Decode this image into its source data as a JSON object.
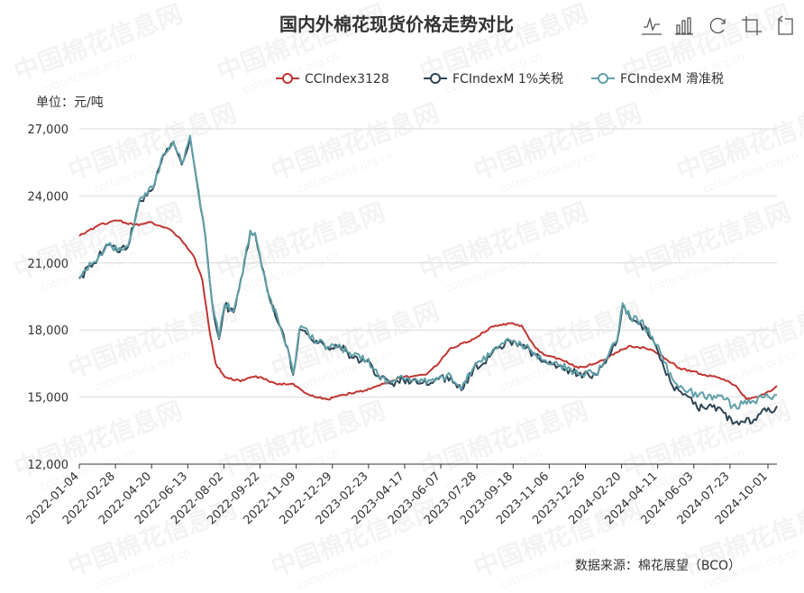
{
  "chart_data": {
    "type": "line",
    "title": "国内外棉花现货价格走势对比",
    "unit_label": "单位：元/吨",
    "source": "数据来源：棉花展望（BCO）",
    "x_tick_labels": [
      "2022-01-04",
      "2022-02-28",
      "2022-04-20",
      "2022-06-13",
      "2022-08-02",
      "2022-09-22",
      "2022-11-09",
      "2022-12-29",
      "2023-02-23",
      "2023-04-17",
      "2023-06-07",
      "2023-07-28",
      "2023-09-18",
      "2023-11-06",
      "2023-12-26",
      "2024-02-20",
      "2024-04-11",
      "2024-06-03",
      "2024-07-23",
      "2024-10-01"
    ],
    "ylim": [
      12000,
      27000
    ],
    "y_ticks": [
      12000,
      15000,
      18000,
      21000,
      24000,
      27000
    ],
    "y_tick_labels": [
      "12,000",
      "15,000",
      "18,000",
      "21,000",
      "24,000",
      "27,000"
    ],
    "grid": true,
    "legend_position": "top-right",
    "x_domain": [
      "2022-01-04",
      "2024-10-08"
    ],
    "series": [
      {
        "name": "CCIndex3128",
        "color": "#c23531",
        "points": [
          [
            "2022-01-04",
            22200
          ],
          [
            "2022-02-01",
            22700
          ],
          [
            "2022-02-28",
            22900
          ],
          [
            "2022-03-25",
            22700
          ],
          [
            "2022-04-20",
            22800
          ],
          [
            "2022-05-15",
            22500
          ],
          [
            "2022-06-01",
            22000
          ],
          [
            "2022-06-20",
            21200
          ],
          [
            "2022-07-01",
            20200
          ],
          [
            "2022-07-12",
            17800
          ],
          [
            "2022-07-20",
            16500
          ],
          [
            "2022-08-02",
            15900
          ],
          [
            "2022-08-25",
            15700
          ],
          [
            "2022-09-10",
            15900
          ],
          [
            "2022-09-22",
            15900
          ],
          [
            "2022-10-15",
            15600
          ],
          [
            "2022-11-09",
            15600
          ],
          [
            "2022-11-25",
            15200
          ],
          [
            "2022-12-10",
            15000
          ],
          [
            "2022-12-29",
            14900
          ],
          [
            "2023-01-20",
            15100
          ],
          [
            "2023-02-23",
            15300
          ],
          [
            "2023-03-20",
            15600
          ],
          [
            "2023-04-17",
            15900
          ],
          [
            "2023-05-20",
            16000
          ],
          [
            "2023-06-07",
            16500
          ],
          [
            "2023-06-25",
            17200
          ],
          [
            "2023-07-28",
            17600
          ],
          [
            "2023-08-20",
            18100
          ],
          [
            "2023-09-18",
            18300
          ],
          [
            "2023-10-05",
            18200
          ],
          [
            "2023-10-25",
            17200
          ],
          [
            "2023-11-06",
            16900
          ],
          [
            "2023-11-30",
            16700
          ],
          [
            "2023-12-26",
            16300
          ],
          [
            "2024-01-20",
            16500
          ],
          [
            "2024-02-20",
            17000
          ],
          [
            "2024-03-10",
            17300
          ],
          [
            "2024-04-11",
            17100
          ],
          [
            "2024-05-01",
            16700
          ],
          [
            "2024-05-20",
            16300
          ],
          [
            "2024-06-03",
            16200
          ],
          [
            "2024-06-25",
            16000
          ],
          [
            "2024-07-23",
            15800
          ],
          [
            "2024-08-10",
            15500
          ],
          [
            "2024-08-25",
            14900
          ],
          [
            "2024-09-10",
            15000
          ],
          [
            "2024-10-01",
            15300
          ],
          [
            "2024-10-08",
            15500
          ]
        ]
      },
      {
        "name": "FCIndexM 1%关税",
        "color": "#2f4554",
        "points": [
          [
            "2022-01-04",
            20300
          ],
          [
            "2022-01-25",
            21000
          ],
          [
            "2022-02-15",
            21800
          ],
          [
            "2022-02-28",
            21500
          ],
          [
            "2022-03-15",
            21700
          ],
          [
            "2022-04-01",
            23800
          ],
          [
            "2022-04-20",
            24300
          ],
          [
            "2022-05-05",
            25800
          ],
          [
            "2022-05-20",
            26400
          ],
          [
            "2022-06-01",
            25400
          ],
          [
            "2022-06-13",
            26600
          ],
          [
            "2022-06-20",
            25200
          ],
          [
            "2022-06-28",
            23500
          ],
          [
            "2022-07-05",
            22200
          ],
          [
            "2022-07-15",
            19200
          ],
          [
            "2022-07-25",
            17600
          ],
          [
            "2022-08-02",
            19100
          ],
          [
            "2022-08-15",
            18800
          ],
          [
            "2022-08-28",
            20500
          ],
          [
            "2022-09-08",
            22400
          ],
          [
            "2022-09-15",
            22300
          ],
          [
            "2022-09-22",
            21300
          ],
          [
            "2022-10-05",
            19500
          ],
          [
            "2022-10-20",
            18200
          ],
          [
            "2022-11-01",
            17200
          ],
          [
            "2022-11-09",
            16000
          ],
          [
            "2022-11-18",
            18000
          ],
          [
            "2022-12-01",
            17800
          ],
          [
            "2022-12-15",
            17400
          ],
          [
            "2022-12-29",
            17200
          ],
          [
            "2023-01-15",
            17300
          ],
          [
            "2023-02-01",
            16800
          ],
          [
            "2023-02-23",
            16600
          ],
          [
            "2023-03-15",
            15800
          ],
          [
            "2023-04-01",
            15600
          ],
          [
            "2023-04-17",
            15800
          ],
          [
            "2023-05-10",
            15600
          ],
          [
            "2023-06-07",
            15800
          ],
          [
            "2023-06-25",
            15900
          ],
          [
            "2023-07-10",
            15300
          ],
          [
            "2023-07-28",
            16300
          ],
          [
            "2023-08-20",
            16800
          ],
          [
            "2023-09-01",
            17200
          ],
          [
            "2023-09-18",
            17500
          ],
          [
            "2023-10-05",
            17300
          ],
          [
            "2023-10-25",
            16900
          ],
          [
            "2023-11-06",
            16600
          ],
          [
            "2023-11-30",
            16400
          ],
          [
            "2023-12-26",
            16000
          ],
          [
            "2024-01-20",
            16000
          ],
          [
            "2024-02-01",
            16500
          ],
          [
            "2024-02-20",
            17500
          ],
          [
            "2024-02-28",
            19100
          ],
          [
            "2024-03-10",
            18500
          ],
          [
            "2024-03-25",
            18300
          ],
          [
            "2024-04-11",
            17600
          ],
          [
            "2024-04-25",
            16600
          ],
          [
            "2024-05-10",
            15500
          ],
          [
            "2024-05-25",
            15100
          ],
          [
            "2024-06-03",
            15000
          ],
          [
            "2024-06-15",
            14500
          ],
          [
            "2024-07-01",
            14600
          ],
          [
            "2024-07-23",
            14300
          ],
          [
            "2024-08-05",
            13800
          ],
          [
            "2024-08-20",
            13900
          ],
          [
            "2024-09-05",
            14000
          ],
          [
            "2024-09-20",
            14500
          ],
          [
            "2024-10-01",
            14300
          ],
          [
            "2024-10-08",
            14600
          ]
        ]
      },
      {
        "name": "FCIndexM 滑准税",
        "color": "#61a0a8",
        "points": [
          [
            "2022-01-04",
            20350
          ],
          [
            "2022-01-25",
            21050
          ],
          [
            "2022-02-15",
            21850
          ],
          [
            "2022-02-28",
            21550
          ],
          [
            "2022-03-15",
            21750
          ],
          [
            "2022-04-01",
            23850
          ],
          [
            "2022-04-20",
            24350
          ],
          [
            "2022-05-05",
            25850
          ],
          [
            "2022-05-20",
            26450
          ],
          [
            "2022-06-01",
            25450
          ],
          [
            "2022-06-13",
            26700
          ],
          [
            "2022-06-20",
            25250
          ],
          [
            "2022-06-28",
            23550
          ],
          [
            "2022-07-05",
            22250
          ],
          [
            "2022-07-15",
            19250
          ],
          [
            "2022-07-25",
            17650
          ],
          [
            "2022-08-02",
            19150
          ],
          [
            "2022-08-15",
            18850
          ],
          [
            "2022-08-28",
            20550
          ],
          [
            "2022-09-08",
            22450
          ],
          [
            "2022-09-15",
            22350
          ],
          [
            "2022-09-22",
            21350
          ],
          [
            "2022-10-05",
            19550
          ],
          [
            "2022-10-20",
            18250
          ],
          [
            "2022-11-01",
            17250
          ],
          [
            "2022-11-09",
            16050
          ],
          [
            "2022-11-18",
            18050
          ],
          [
            "2022-12-01",
            17850
          ],
          [
            "2022-12-15",
            17450
          ],
          [
            "2022-12-29",
            17250
          ],
          [
            "2023-01-15",
            17350
          ],
          [
            "2023-02-01",
            16850
          ],
          [
            "2023-02-23",
            16650
          ],
          [
            "2023-03-15",
            15850
          ],
          [
            "2023-04-01",
            15650
          ],
          [
            "2023-04-17",
            15850
          ],
          [
            "2023-05-10",
            15650
          ],
          [
            "2023-06-07",
            15850
          ],
          [
            "2023-06-25",
            15950
          ],
          [
            "2023-07-10",
            15350
          ],
          [
            "2023-07-28",
            16350
          ],
          [
            "2023-08-20",
            16850
          ],
          [
            "2023-09-01",
            17250
          ],
          [
            "2023-09-18",
            17550
          ],
          [
            "2023-10-05",
            17350
          ],
          [
            "2023-10-25",
            16950
          ],
          [
            "2023-11-06",
            16650
          ],
          [
            "2023-11-30",
            16450
          ],
          [
            "2023-12-26",
            16050
          ],
          [
            "2024-01-20",
            16050
          ],
          [
            "2024-02-01",
            16550
          ],
          [
            "2024-02-20",
            17550
          ],
          [
            "2024-02-28",
            19200
          ],
          [
            "2024-03-10",
            18600
          ],
          [
            "2024-03-25",
            18400
          ],
          [
            "2024-04-11",
            17700
          ],
          [
            "2024-04-25",
            16800
          ],
          [
            "2024-05-10",
            15800
          ],
          [
            "2024-05-25",
            15400
          ],
          [
            "2024-06-03",
            15300
          ],
          [
            "2024-06-15",
            15000
          ],
          [
            "2024-07-01",
            15100
          ],
          [
            "2024-07-23",
            14900
          ],
          [
            "2024-08-05",
            14600
          ],
          [
            "2024-08-20",
            14700
          ],
          [
            "2024-09-05",
            14800
          ],
          [
            "2024-09-20",
            15000
          ],
          [
            "2024-10-01",
            14900
          ],
          [
            "2024-10-08",
            15100
          ]
        ]
      }
    ]
  },
  "watermark": {
    "text": "中国棉花信息网",
    "url": "cottonchina.org.cn"
  },
  "toolbox": {
    "icons": [
      "line-icon",
      "bar-icon",
      "restore-icon",
      "data-view-icon",
      "back-icon"
    ]
  }
}
